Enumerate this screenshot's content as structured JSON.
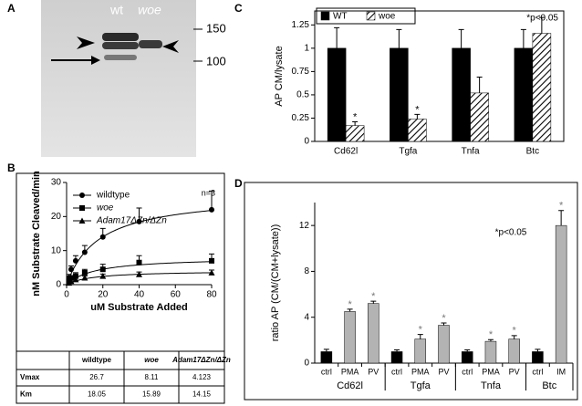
{
  "panel_labels": [
    "A",
    "B",
    "C",
    "D"
  ],
  "blot": {
    "lanes": [
      "wt",
      "woe"
    ],
    "markers": [
      "150",
      "100"
    ]
  },
  "chart_data": [
    {
      "type": "line",
      "x_label": "uM Substrate Added",
      "y_label": "nM Substrate Cleaved/min",
      "annotation": "n=3",
      "x": [
        1.25,
        2.5,
        5,
        10,
        20,
        40,
        80
      ],
      "xlim": [
        0,
        80
      ],
      "xticks": [
        0,
        20,
        40,
        60,
        80
      ],
      "ylim": [
        0,
        30
      ],
      "yticks": [
        0,
        10,
        20,
        30
      ],
      "series": [
        {
          "name": "wildtype",
          "marker": "circle",
          "color": "#000000",
          "values": [
            2,
            4.5,
            7,
            9.5,
            14,
            18.5,
            22
          ],
          "errors": [
            1,
            1,
            1.5,
            2,
            2.5,
            4,
            5.5
          ]
        },
        {
          "name": "woe",
          "marker": "square",
          "color": "#000000",
          "values": [
            1,
            2,
            2.5,
            3.5,
            4.5,
            6.5,
            7
          ],
          "errors": [
            0.5,
            0.5,
            1,
            1,
            1.5,
            2,
            2
          ]
        },
        {
          "name": "Adam17ΔZn/ΔZn",
          "marker": "triangle",
          "color": "#000000",
          "values": [
            0.5,
            1,
            1.5,
            2,
            2.5,
            3,
            3.5
          ],
          "errors": [
            0.3,
            0.3,
            0.4,
            0.5,
            0.6,
            0.7,
            0.8
          ]
        }
      ]
    },
    {
      "type": "bar",
      "y_label": "AP CM/lysate",
      "annotation": "*p<0.05",
      "categories": [
        "Cd62l",
        "Tgfa",
        "Tnfa",
        "Btc"
      ],
      "ylim": [
        0,
        1.4
      ],
      "yticks": [
        0,
        0.25,
        0.5,
        0.75,
        1,
        1.25
      ],
      "series": [
        {
          "name": "WT",
          "color": "#000000",
          "hatch": false,
          "values": [
            1,
            1,
            1,
            1
          ],
          "errors": [
            0.22,
            0.2,
            0.2,
            0.2
          ],
          "stars": [
            null,
            null,
            null,
            null
          ]
        },
        {
          "name": "woe",
          "color": "#000000",
          "hatch": true,
          "values": [
            0.17,
            0.24,
            0.52,
            1.16
          ],
          "errors": [
            0.04,
            0.05,
            0.17,
            0.17
          ],
          "stars": [
            "*",
            "*",
            null,
            null
          ]
        }
      ]
    },
    {
      "type": "grouped-bar",
      "y_label": "ratio AP (CM/(CM+lysate))",
      "annotation": "*p<0.05",
      "ylim": [
        0,
        14
      ],
      "yticks": [
        0,
        4,
        8,
        12
      ],
      "groups": [
        {
          "name": "Cd62l",
          "categories": [
            "ctrl",
            "PMA",
            "PV"
          ],
          "values": [
            1,
            4.5,
            5.2
          ],
          "errors": [
            0.2,
            0.2,
            0.2
          ],
          "colors": [
            "#000000",
            "#b3b3b3",
            "#b3b3b3"
          ],
          "stars": [
            null,
            "*",
            "*"
          ]
        },
        {
          "name": "Tgfa",
          "categories": [
            "ctrl",
            "PMA",
            "PV"
          ],
          "values": [
            1,
            2.1,
            3.3
          ],
          "errors": [
            0.15,
            0.4,
            0.2
          ],
          "colors": [
            "#000000",
            "#b3b3b3",
            "#b3b3b3"
          ],
          "stars": [
            null,
            "*",
            "*"
          ]
        },
        {
          "name": "Tnfa",
          "categories": [
            "ctrl",
            "PMA",
            "PV"
          ],
          "values": [
            1,
            1.9,
            2.1
          ],
          "errors": [
            0.15,
            0.15,
            0.3
          ],
          "colors": [
            "#000000",
            "#b3b3b3",
            "#b3b3b3"
          ],
          "stars": [
            null,
            "*",
            "*"
          ]
        },
        {
          "name": "Btc",
          "categories": [
            "ctrl",
            "IM"
          ],
          "values": [
            1,
            12
          ],
          "errors": [
            0.2,
            1.3
          ],
          "colors": [
            "#000000",
            "#b3b3b3"
          ],
          "stars": [
            null,
            "*"
          ]
        }
      ]
    }
  ],
  "table": {
    "header": [
      "wildtype",
      "woe",
      "Adam17ΔZn/ΔZn"
    ],
    "rows": [
      [
        "Vmax",
        26.7,
        8.11,
        4.123
      ],
      [
        "Km",
        18.05,
        15.89,
        14.15
      ]
    ]
  }
}
